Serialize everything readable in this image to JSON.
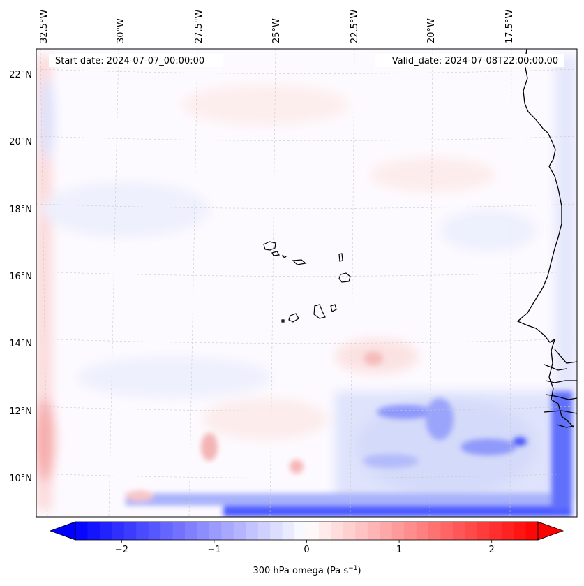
{
  "map": {
    "start_label": "Start date: 2024-07-07_00:00:00",
    "valid_label": "Valid_date: 2024-07-08T22:00:00.00",
    "lon_labels": [
      "32.5°W",
      "30°W",
      "27.5°W",
      "25°W",
      "22.5°W",
      "20°W",
      "17.5°W"
    ],
    "lat_labels": [
      "22°N",
      "20°N",
      "18°N",
      "16°N",
      "14°N",
      "12°N",
      "10°N"
    ],
    "colorbar": {
      "ticks": [
        "−2",
        "−1",
        "0",
        "1",
        "2"
      ],
      "tick_values": [
        -2,
        -1,
        0,
        1,
        2
      ],
      "range": [
        -2.5,
        2.5
      ],
      "label_main": "300 hPa omega (Pa s",
      "label_sup": "−1",
      "label_end": ")",
      "colors": {
        "negative": "#0000ff",
        "zero": "#ffffff",
        "positive": "#ff0000"
      }
    }
  }
}
